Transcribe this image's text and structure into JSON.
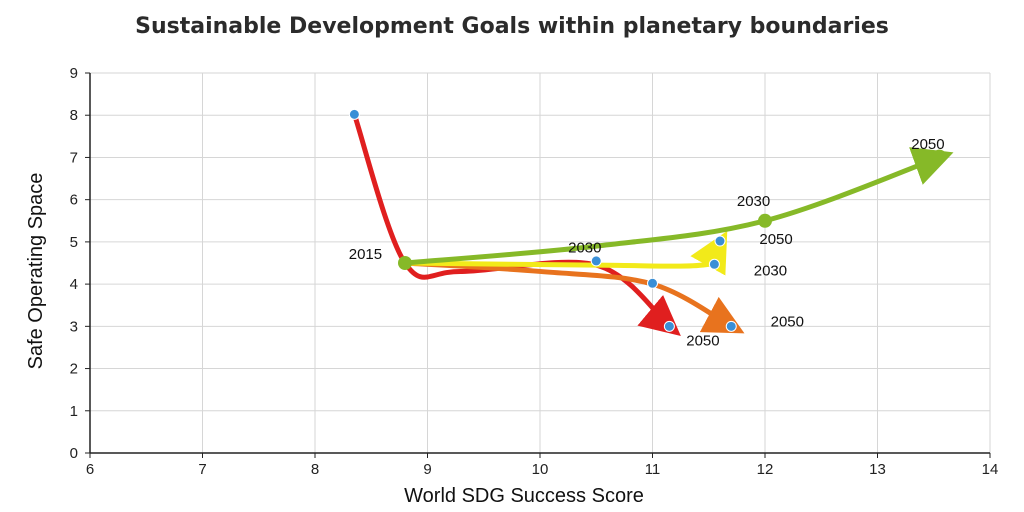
{
  "chart_data": {
    "type": "line",
    "title": "Sustainable Development Goals within planetary boundaries",
    "xlabel": "World SDG Success Score",
    "ylabel": "Safe Operating Space",
    "xlim": [
      6,
      14
    ],
    "ylim": [
      0,
      9
    ],
    "xticks": [
      6,
      7,
      8,
      9,
      10,
      11,
      12,
      13,
      14
    ],
    "yticks": [
      0,
      1,
      2,
      3,
      4,
      5,
      6,
      7,
      8,
      9
    ],
    "grid": true,
    "colors": {
      "red": "#e01f1f",
      "orange": "#e8731e",
      "yellow": "#f2ea1a",
      "green": "#86b928",
      "point": "#3a8fd6",
      "grid": "#d6d6d6",
      "axis": "#222222"
    },
    "series": [
      {
        "name": "red-path",
        "color": "red",
        "points": [
          [
            8.35,
            8.02
          ],
          [
            8.8,
            4.5
          ],
          [
            9.3,
            4.3
          ],
          [
            10.5,
            4.45
          ],
          [
            11.15,
            3.0
          ]
        ]
      },
      {
        "name": "orange-path",
        "color": "orange",
        "points": [
          [
            8.8,
            4.5
          ],
          [
            10.0,
            4.3
          ],
          [
            11.0,
            4.0
          ],
          [
            11.7,
            3.0
          ]
        ]
      },
      {
        "name": "yellow-path",
        "color": "yellow",
        "points": [
          [
            8.8,
            4.5
          ],
          [
            10.5,
            4.45
          ],
          [
            11.5,
            4.47
          ],
          [
            11.6,
            4.95
          ]
        ]
      },
      {
        "name": "green-path",
        "color": "green",
        "points": [
          [
            8.8,
            4.5
          ],
          [
            10.5,
            4.9
          ],
          [
            12.0,
            5.5
          ],
          [
            13.55,
            7.0
          ]
        ]
      }
    ],
    "points": [
      {
        "x": 8.35,
        "y": 8.02,
        "kind": "blue"
      },
      {
        "x": 8.8,
        "y": 4.5,
        "kind": "green"
      },
      {
        "x": 10.5,
        "y": 4.55,
        "kind": "blue"
      },
      {
        "x": 11.0,
        "y": 4.02,
        "kind": "blue"
      },
      {
        "x": 11.15,
        "y": 3.0,
        "kind": "blue"
      },
      {
        "x": 11.7,
        "y": 3.0,
        "kind": "blue"
      },
      {
        "x": 11.55,
        "y": 4.47,
        "kind": "blue"
      },
      {
        "x": 11.6,
        "y": 5.02,
        "kind": "blue"
      },
      {
        "x": 12.0,
        "y": 5.5,
        "kind": "green"
      },
      {
        "x": 13.55,
        "y": 7.02,
        "kind": "green"
      }
    ],
    "annotations": [
      {
        "text": "2015",
        "x": 8.3,
        "y": 4.6
      },
      {
        "text": "2030",
        "x": 10.25,
        "y": 4.75
      },
      {
        "text": "2030",
        "x": 11.9,
        "y": 4.2
      },
      {
        "text": "2030",
        "x": 11.75,
        "y": 5.85
      },
      {
        "text": "2050",
        "x": 11.95,
        "y": 4.95
      },
      {
        "text": "2050",
        "x": 12.05,
        "y": 3.0
      },
      {
        "text": "2050",
        "x": 11.3,
        "y": 2.55
      },
      {
        "text": "2050",
        "x": 13.3,
        "y": 7.2
      }
    ]
  }
}
